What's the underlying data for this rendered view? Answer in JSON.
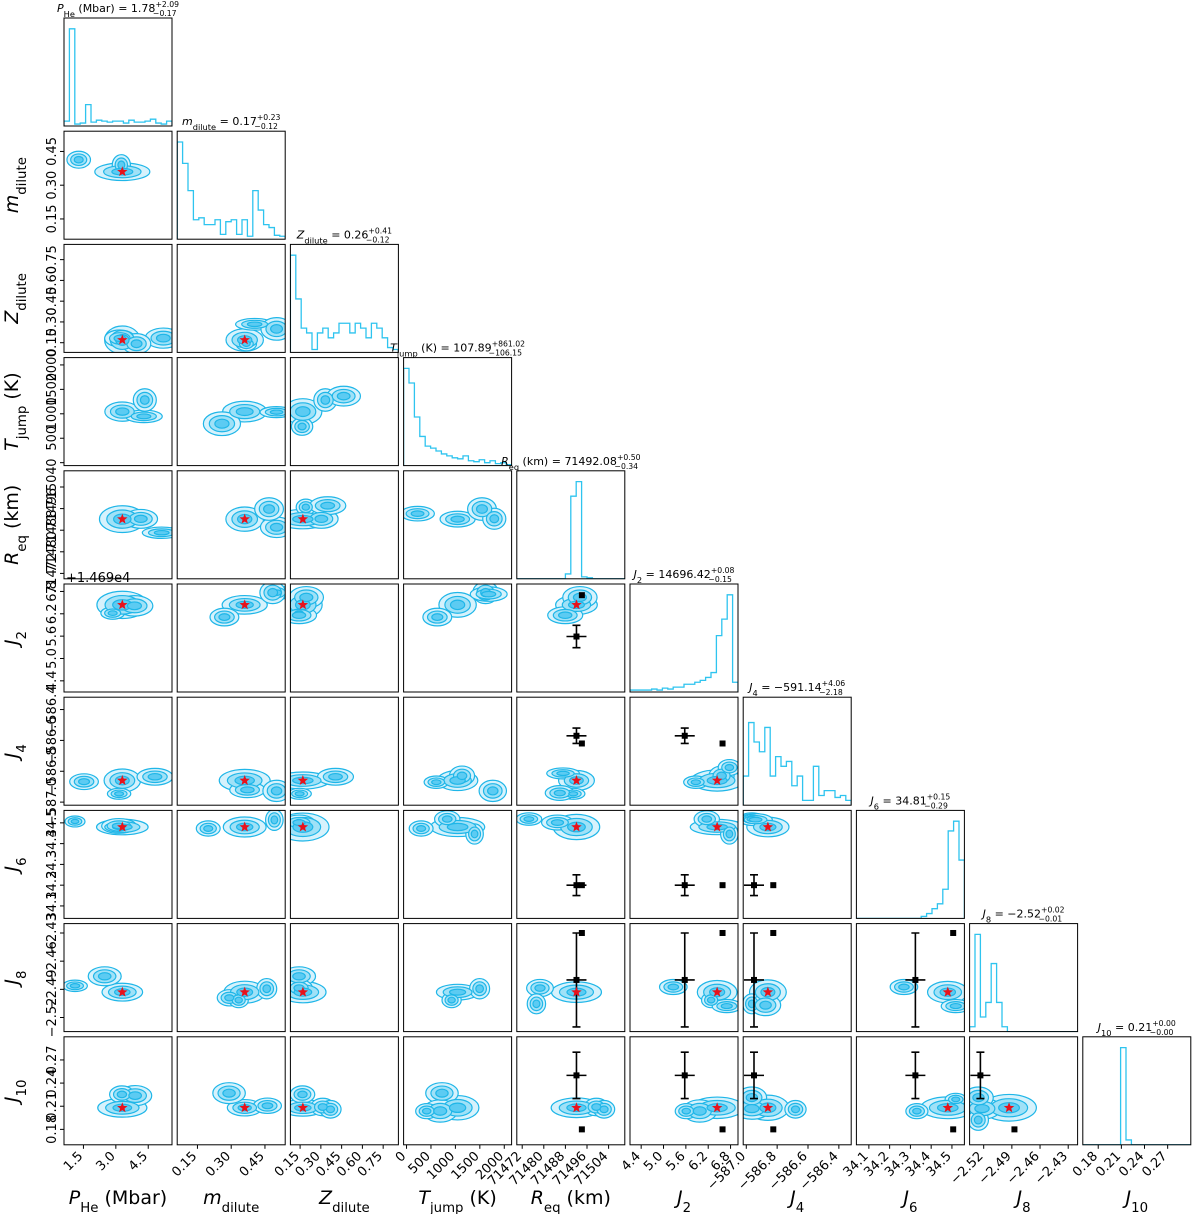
{
  "chart_data": {
    "type": "corner",
    "colors": {
      "hist": "#2ec4ef",
      "contour_line": "#1fb6e8",
      "fill_outer": "#d6f2fc",
      "fill_mid": "#9fe1f7",
      "fill_inner": "#5ccbf2",
      "truth_star": "#e8121b",
      "obs_marker": "#000000"
    },
    "parameters": [
      {
        "key": "P_He",
        "axis_label": "P_He (Mbar)",
        "label_main": "P",
        "label_sub": "He",
        "label_unit": " (Mbar)",
        "title": "P_He (Mbar) = 1.78 +2.09 −0.17",
        "title_sym": "P",
        "title_sub": "He",
        "title_unit": " (Mbar)",
        "median": "1.78",
        "plus": "+2.09",
        "minus": "−0.17",
        "range": [
          0.6,
          5.6
        ],
        "ticks": [
          "1.5",
          "3.0",
          "4.5"
        ],
        "tick_values": [
          1.5,
          3.0,
          4.5
        ],
        "truth": 3.3,
        "hist": [
          0.05,
          1.0,
          0.02,
          0.03,
          0.22,
          0.04,
          0.06,
          0.05,
          0.04,
          0.05,
          0.05,
          0.03,
          0.06,
          0.04,
          0.04,
          0.05,
          0.07,
          0.03,
          0.02,
          0.05
        ]
      },
      {
        "key": "m_dilute",
        "axis_label": "m_dilute",
        "label_main": "m",
        "label_sub": "dilute",
        "label_unit": "",
        "title": "m_dilute = 0.17 +0.23 −0.12",
        "title_sym": "m",
        "title_sub": "dilute",
        "title_unit": "",
        "median": "0.17",
        "plus": "+0.23",
        "minus": "−0.12",
        "range": [
          0.06,
          0.54
        ],
        "ticks": [
          "0.15",
          "0.30",
          "0.45"
        ],
        "tick_values": [
          0.15,
          0.3,
          0.45
        ],
        "truth": 0.36,
        "hist": [
          1.0,
          0.78,
          0.5,
          0.2,
          0.22,
          0.15,
          0.15,
          0.2,
          0.05,
          0.18,
          0.2,
          0.05,
          0.2,
          0.03,
          0.5,
          0.3,
          0.15,
          0.12,
          0.04,
          0.03
        ]
      },
      {
        "key": "Z_dilute",
        "axis_label": "Z_dilute",
        "label_main": "Z",
        "label_sub": "dilute",
        "label_unit": "",
        "title": "Z_dilute = 0.26 +0.41 −0.12",
        "title_sym": "Z",
        "title_sub": "dilute",
        "title_unit": "",
        "median": "0.26",
        "plus": "+0.41",
        "minus": "−0.12",
        "range": [
          0.08,
          0.86
        ],
        "ticks": [
          "0.15",
          "0.30",
          "0.45",
          "0.60",
          "0.75"
        ],
        "tick_values": [
          0.15,
          0.3,
          0.45,
          0.6,
          0.75
        ],
        "truth": 0.17,
        "hist": [
          1.0,
          0.55,
          0.25,
          0.2,
          0.03,
          0.2,
          0.25,
          0.15,
          0.2,
          0.3,
          0.3,
          0.2,
          0.3,
          0.25,
          0.15,
          0.3,
          0.25,
          0.15,
          0.05,
          0.03
        ]
      },
      {
        "key": "T_jump",
        "axis_label": "T_jump (K)",
        "label_main": "T",
        "label_sub": "jump",
        "label_unit": " (K)",
        "title": "T_jump (K) = 107.89 +861.02 −106.15",
        "title_sym": "T",
        "title_sub": "jump",
        "title_unit": " (K)",
        "median": "107.89",
        "plus": "+861.02",
        "minus": "−106.15",
        "range": [
          -60,
          2150
        ],
        "ticks": [
          "0",
          "500",
          "1000",
          "1500",
          "2000"
        ],
        "tick_values": [
          0,
          500,
          1000,
          1500,
          2000
        ],
        "truth": null,
        "hist": [
          1.0,
          0.85,
          0.5,
          0.3,
          0.2,
          0.18,
          0.15,
          0.12,
          0.1,
          0.08,
          0.07,
          0.1,
          0.05,
          0.04,
          0.06,
          0.03,
          0.05,
          0.02,
          0.03,
          0.01
        ]
      },
      {
        "key": "R_eq",
        "axis_label": "R_eq (km)",
        "label_main": "R",
        "label_sub": "eq",
        "label_unit": " (km)",
        "title": "R_eq (km) = 71492.08 +0.50 −0.34",
        "title_sym": "R",
        "title_sub": "eq",
        "title_unit": " (km)",
        "median": "71492.08",
        "plus": "+0.50",
        "minus": "−0.34",
        "range": [
          71470,
          71510
        ],
        "ticks": [
          "71472",
          "71480",
          "71488",
          "71496",
          "71504"
        ],
        "tick_values": [
          71472,
          71480,
          71488,
          71496,
          71504
        ],
        "truth": 71492.1,
        "obs": [
          {
            "y": 71492.0,
            "yerr": 1.0
          }
        ],
        "hist": [
          0,
          0,
          0,
          0,
          0,
          0,
          0,
          0,
          0,
          0.05,
          0.85,
          1.0,
          0.02,
          0.01,
          0.0,
          0,
          0,
          0,
          0,
          0
        ]
      },
      {
        "key": "J2",
        "axis_label": "J2",
        "label_main": "J",
        "label_sub": "2",
        "label_unit": "",
        "title": "J2 = 14696.42 +0.08 −0.15",
        "title_sym": "J",
        "title_sub": "2",
        "title_unit": "",
        "median": "14696.42",
        "plus": "+0.08",
        "minus": "−0.15",
        "range": [
          4.1,
          7.0
        ],
        "ticks": [
          "4.4",
          "5.0",
          "5.6",
          "6.2",
          "6.8"
        ],
        "tick_values": [
          4.4,
          5.0,
          5.6,
          6.2,
          6.8
        ],
        "truth": 6.44,
        "offset_text": "+1.469e4",
        "obs": [
          {
            "y": 5.59,
            "yerr": 0.3
          },
          {
            "y": 6.7,
            "yerr": 0
          }
        ],
        "hist": [
          0.02,
          0.02,
          0.02,
          0.02,
          0.03,
          0.02,
          0.04,
          0.03,
          0.05,
          0.05,
          0.08,
          0.08,
          0.1,
          0.12,
          0.15,
          0.2,
          0.58,
          0.75,
          1.0,
          0.1
        ]
      },
      {
        "key": "J4",
        "axis_label": "J4",
        "label_main": "J",
        "label_sub": "4",
        "label_unit": "",
        "title": "J4 = −591.14 +4.06 −2.18",
        "title_sym": "J",
        "title_sub": "4",
        "title_unit": "",
        "median": "−591.14",
        "plus": "+4.06",
        "minus": "−2.18",
        "range": [
          -587.02,
          -586.32
        ],
        "ticks": [
          "−587.0",
          "−586.8",
          "−586.6",
          "−586.4"
        ],
        "tick_values": [
          -587.0,
          -586.8,
          -586.6,
          -586.4
        ],
        "truth": -586.86,
        "obs": [
          {
            "y": -586.57,
            "yerr": 0.05
          },
          {
            "y": -586.62,
            "yerr": 0
          }
        ],
        "hist": [
          0.3,
          0.85,
          0.65,
          0.55,
          0.8,
          0.3,
          0.5,
          0.4,
          0.45,
          0.2,
          0.3,
          0.05,
          0.05,
          0.4,
          0.1,
          0.15,
          0.15,
          0.08,
          0.1,
          0.05
        ]
      },
      {
        "key": "J6",
        "axis_label": "J6",
        "label_main": "J",
        "label_sub": "6",
        "label_unit": "",
        "title": "J6 = 34.81 +0.15 −0.29",
        "title_sym": "J",
        "title_sub": "6",
        "title_unit": "",
        "median": "34.81",
        "plus": "+0.15",
        "minus": "−0.29",
        "range": [
          34.04,
          34.56
        ],
        "ticks": [
          "34.1",
          "34.2",
          "34.3",
          "34.4",
          "34.5"
        ],
        "tick_values": [
          34.1,
          34.2,
          34.3,
          34.4,
          34.5
        ],
        "truth": 34.48,
        "obs": [
          {
            "y": 34.2,
            "yerr": 0.05
          },
          {
            "y": 34.2,
            "yerr": 0
          }
        ],
        "hist": [
          0,
          0,
          0,
          0,
          0,
          0,
          0,
          0,
          0,
          0,
          0,
          0,
          0.02,
          0.05,
          0.1,
          0.15,
          0.3,
          0.9,
          1.0,
          0.6
        ]
      },
      {
        "key": "J8",
        "axis_label": "J8",
        "label_main": "J",
        "label_sub": "8",
        "label_unit": "",
        "title": "J8 = −2.52 +0.02 −0.01",
        "title_sym": "J",
        "title_sub": "8",
        "title_unit": "",
        "median": "−2.52",
        "plus": "+0.02",
        "minus": "−0.01",
        "range": [
          -2.535,
          -2.42
        ],
        "ticks": [
          "−2.52",
          "−2.49",
          "−2.46",
          "−2.43"
        ],
        "tick_values": [
          -2.52,
          -2.49,
          -2.46,
          -2.43
        ],
        "truth": -2.493,
        "obs": [
          {
            "y": -2.48,
            "yerr": 0.05
          },
          {
            "y": -2.43,
            "yerr": 0
          }
        ],
        "hist": [
          0.05,
          1.0,
          0.15,
          0.3,
          0.7,
          0.3,
          0.05,
          0,
          0,
          0,
          0,
          0,
          0,
          0,
          0,
          0,
          0,
          0,
          0,
          0
        ]
      },
      {
        "key": "J10",
        "axis_label": "J10",
        "label_main": "J",
        "label_sub": "10",
        "label_unit": "",
        "title": "J10 = 0.21 +0.00 −0.00",
        "title_sym": "J",
        "title_sub": "10",
        "title_unit": "",
        "median": "0.21",
        "plus": "+0.00",
        "minus": "−0.00",
        "range": [
          0.16,
          0.3
        ],
        "ticks": [
          "0.18",
          "0.21",
          "0.24",
          "0.27"
        ],
        "tick_values": [
          0.18,
          0.21,
          0.24,
          0.27
        ],
        "truth": 0.208,
        "obs": [
          {
            "y": 0.25,
            "yerr": 0.03
          },
          {
            "y": 0.18,
            "yerr": 0
          }
        ],
        "hist": [
          0,
          0,
          0,
          0,
          0,
          0,
          0,
          1.0,
          0.05,
          0,
          0,
          0,
          0,
          0,
          0,
          0,
          0,
          0,
          0,
          0
        ]
      }
    ]
  }
}
